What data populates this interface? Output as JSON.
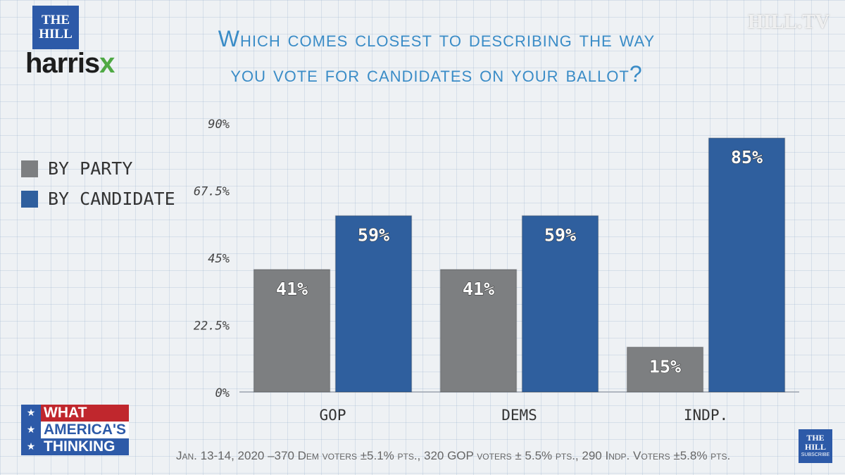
{
  "logos": {
    "the_hill_line1": "THE",
    "the_hill_line2": "HILL",
    "harris": "harris",
    "x": "x",
    "watermark": "HILL.TV",
    "subscribe_line1": "THE",
    "subscribe_line2": "HILL",
    "subscribe_label": "SUBSCRIBE"
  },
  "title_line1": "Which comes closest to describing the way",
  "title_line2": "you vote for candidates on your ballot?",
  "legend": [
    {
      "label": "BY PARTY",
      "color": "#7d7f81"
    },
    {
      "label": "BY CANDIDATE",
      "color": "#2f5f9e"
    }
  ],
  "badge": {
    "line1": "WHAT",
    "line2": "AMERICA'S",
    "line3": "THINKING",
    "stars": "★"
  },
  "footnote": "Jan. 13-14, 2020 –370 Dem voters ±5.1% pts., 320 GOP voters ± 5.5% pts., 290 Indp. Voters ±5.8% pts.",
  "chart_data": {
    "type": "bar",
    "categories": [
      "GOP",
      "DEMS",
      "INDP."
    ],
    "series": [
      {
        "name": "BY PARTY",
        "values": [
          41,
          41,
          15
        ],
        "labels": [
          "41%",
          "41%",
          "15%"
        ],
        "color": "#7d7f81"
      },
      {
        "name": "BY CANDIDATE",
        "values": [
          59,
          59,
          85
        ],
        "labels": [
          "59%",
          "59%",
          "85%"
        ],
        "color": "#2f5f9e"
      }
    ],
    "yticks": [
      0,
      22.5,
      45,
      67.5,
      90
    ],
    "ytick_labels": [
      "0%",
      "22.5%",
      "45%",
      "67.5%",
      "90%"
    ],
    "ylim": [
      0,
      90
    ],
    "grid": true
  }
}
